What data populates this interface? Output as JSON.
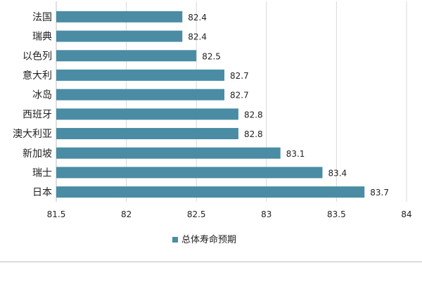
{
  "chart_data": {
    "type": "bar",
    "orientation": "horizontal",
    "categories": [
      "法国",
      "瑞典",
      "以色列",
      "意大利",
      "冰岛",
      "西班牙",
      "澳大利亚",
      "新加坡",
      "瑞士",
      "日本"
    ],
    "series": [
      {
        "name": "总体寿命预期",
        "values": [
          82.4,
          82.4,
          82.5,
          82.7,
          82.7,
          82.8,
          82.8,
          83.1,
          83.4,
          83.7
        ]
      }
    ],
    "data_labels": [
      "82.4",
      "82.4",
      "82.5",
      "82.7",
      "82.7",
      "82.8",
      "82.8",
      "83.1",
      "83.4",
      "83.7"
    ],
    "x_ticks": [
      "81.5",
      "82",
      "82.5",
      "83",
      "83.5",
      "84"
    ],
    "xlim": [
      81.5,
      84
    ],
    "grid": "vertical",
    "legend_position": "bottom",
    "colors": {
      "bar": "#4a8ca4",
      "grid": "#d9d9d9",
      "text": "#222222"
    }
  }
}
